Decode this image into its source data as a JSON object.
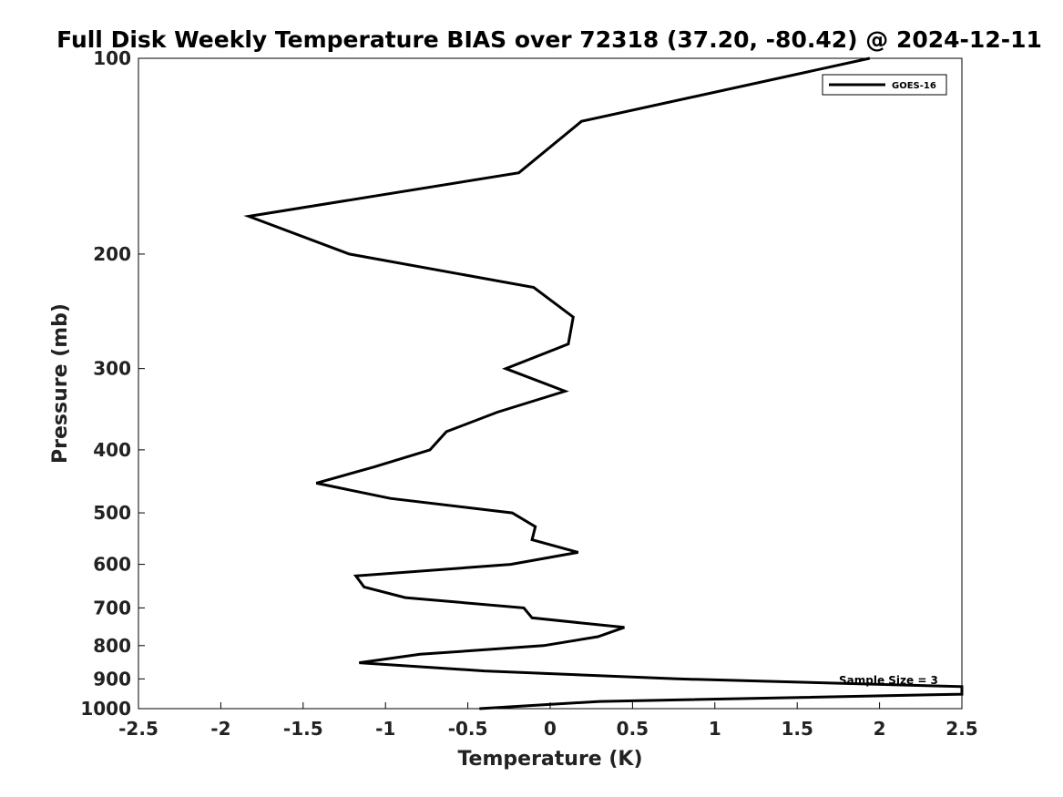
{
  "chart_data": {
    "type": "line",
    "title": "Full Disk Weekly Temperature BIAS over 72318 (37.20, -80.42) @ 2024-12-11",
    "xlabel": "Temperature (K)",
    "ylabel": "Pressure (mb)",
    "xlim": [
      -2.5,
      2.5
    ],
    "ylim": [
      100,
      1000
    ],
    "yscale": "log",
    "yreversed": true,
    "xticks": [
      -2.5,
      -2,
      -1.5,
      -1,
      -0.5,
      0,
      0.5,
      1,
      1.5,
      2,
      2.5
    ],
    "xtick_labels": [
      "-2.5",
      "-2",
      "-1.5",
      "-1",
      "-0.5",
      "0",
      "0.5",
      "1",
      "1.5",
      "2",
      "2.5"
    ],
    "yticks": [
      100,
      200,
      300,
      400,
      500,
      600,
      700,
      800,
      900,
      1000
    ],
    "ytick_labels": [
      "100",
      "200",
      "300",
      "400",
      "500",
      "600",
      "700",
      "800",
      "900",
      "1000"
    ],
    "grid": false,
    "legend_position": "top-right",
    "series": [
      {
        "name": "GOES-16",
        "color": "#000000",
        "points": [
          [
            1.94,
            100
          ],
          [
            0.19,
            125
          ],
          [
            -0.19,
            150
          ],
          [
            -1.83,
            175
          ],
          [
            -1.22,
            200
          ],
          [
            -0.1,
            225
          ],
          [
            0.14,
            250
          ],
          [
            0.11,
            275
          ],
          [
            -0.27,
            300
          ],
          [
            0.09,
            325
          ],
          [
            -0.32,
            350
          ],
          [
            -0.63,
            375
          ],
          [
            -0.73,
            400
          ],
          [
            -1.07,
            425
          ],
          [
            -1.42,
            450
          ],
          [
            -0.97,
            475
          ],
          [
            -0.23,
            500
          ],
          [
            -0.09,
            525
          ],
          [
            -0.11,
            550
          ],
          [
            0.17,
            575
          ],
          [
            -0.24,
            600
          ],
          [
            -1.18,
            625
          ],
          [
            -1.13,
            650
          ],
          [
            -0.88,
            675
          ],
          [
            -0.16,
            700
          ],
          [
            -0.11,
            725
          ],
          [
            0.45,
            750
          ],
          [
            0.29,
            775
          ],
          [
            -0.04,
            800
          ],
          [
            -0.79,
            825
          ],
          [
            -1.16,
            850
          ],
          [
            -0.4,
            875
          ],
          [
            0.77,
            900
          ],
          [
            2.5,
            925
          ],
          [
            2.5,
            950
          ],
          [
            0.3,
            975
          ],
          [
            -0.43,
            1000
          ]
        ]
      }
    ],
    "annotations": [
      "Sample Size = 3"
    ]
  }
}
